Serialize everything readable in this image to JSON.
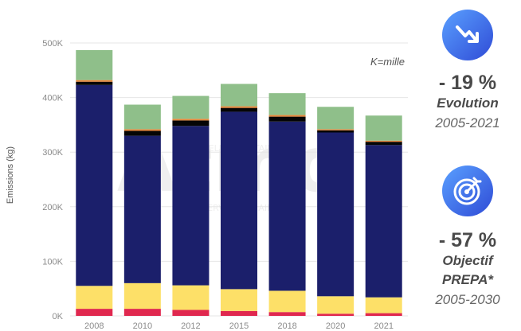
{
  "chart_data": {
    "type": "bar",
    "stacked": true,
    "categories": [
      "2008",
      "2010",
      "2012",
      "2015",
      "2018",
      "2020",
      "2021"
    ],
    "ylabel": "Emissions (kg)",
    "ylim": [
      0,
      500000
    ],
    "yticks": [
      {
        "value": 0,
        "label": "0K"
      },
      {
        "value": 100000,
        "label": "100K"
      },
      {
        "value": 200000,
        "label": "200K"
      },
      {
        "value": 300000,
        "label": "300K"
      },
      {
        "value": 400000,
        "label": "400K"
      },
      {
        "value": 500000,
        "label": "500K"
      }
    ],
    "annotation": "K=mille",
    "grid": true,
    "series": [
      {
        "color": "#e0284f",
        "values": [
          13000,
          13000,
          11000,
          9000,
          7000,
          4000,
          5000
        ]
      },
      {
        "color": "#fde068",
        "values": [
          42000,
          47000,
          45000,
          40000,
          39000,
          32000,
          29000
        ]
      },
      {
        "color": "#1b1f6b",
        "values": [
          368000,
          270000,
          292000,
          325000,
          310000,
          300000,
          279000
        ]
      },
      {
        "color": "#050505",
        "values": [
          6000,
          9000,
          10000,
          7000,
          9000,
          4000,
          6000
        ]
      },
      {
        "color": "#e8863a",
        "values": [
          3000,
          3000,
          3000,
          3000,
          3000,
          2000,
          2000
        ]
      },
      {
        "color": "#8fbf8a",
        "values": [
          55000,
          45000,
          42000,
          41000,
          40000,
          41000,
          46000
        ]
      }
    ]
  },
  "watermark": {
    "text": "Atmo",
    "sub1": "NOUVELLE-AQUITAINE",
    "sub2": "OBSERVATOIRE AIR"
  },
  "badges": [
    {
      "icon": "trend-down-icon",
      "percent": "- 19 %",
      "label_lines": [
        "Evolution"
      ],
      "period": "2005-2021"
    },
    {
      "icon": "target-icon",
      "percent": "- 57 %",
      "label_lines": [
        "Objectif",
        "PREPA*"
      ],
      "period": "2005-2030"
    }
  ],
  "colors": {
    "badge_start": "#5aa0ff",
    "badge_end": "#2f4bd6",
    "grid": "#e6e6e6"
  }
}
